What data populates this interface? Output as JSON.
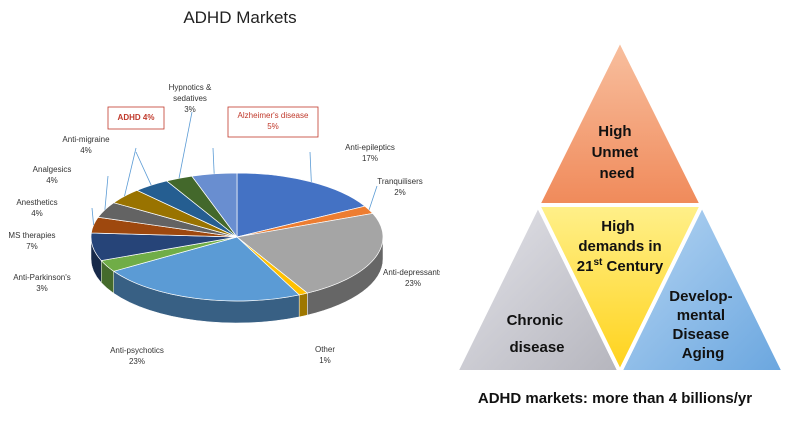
{
  "chart_data": {
    "type": "pie",
    "title": "ADHD Markets",
    "slices": [
      {
        "label": "Anti-epileptics",
        "value": 17,
        "pct": "17%",
        "color": "#4472c4",
        "boxed": false
      },
      {
        "label": "Tranquilisers",
        "value": 2,
        "pct": "2%",
        "color": "#ed7d31",
        "boxed": false
      },
      {
        "label": "Anti-depressants",
        "value": 23,
        "pct": "23%",
        "color": "#a5a5a5",
        "boxed": false
      },
      {
        "label": "Other",
        "value": 1,
        "pct": "1%",
        "color": "#ffc000",
        "boxed": false
      },
      {
        "label": "Anti-psychotics",
        "value": 23,
        "pct": "23%",
        "color": "#5b9bd5",
        "boxed": false
      },
      {
        "label": "Anti-Parkinson's",
        "value": 3,
        "pct": "3%",
        "color": "#70ad47",
        "boxed": false
      },
      {
        "label": "MS therapies",
        "value": 7,
        "pct": "7%",
        "color": "#264478",
        "boxed": false
      },
      {
        "label": "Anesthetics",
        "value": 4,
        "pct": "4%",
        "color": "#9e480e",
        "boxed": false
      },
      {
        "label": "Analgesics",
        "value": 4,
        "pct": "4%",
        "color": "#636363",
        "boxed": false
      },
      {
        "label": "Anti-migraine",
        "value": 4,
        "pct": "4%",
        "color": "#997300",
        "boxed": false
      },
      {
        "label": "ADHD",
        "value": 4,
        "pct": "4%",
        "color": "#255e91",
        "boxed": true
      },
      {
        "label": "Hypnotics & sedatives",
        "value": 3,
        "pct": "3%",
        "color": "#43682b",
        "boxed": false
      },
      {
        "label": "Alzheimer's disease",
        "value": 5,
        "pct": "5%",
        "color": "#698ed0",
        "boxed": true
      }
    ]
  },
  "triangle": {
    "top": [
      "High",
      "Unmet",
      "need"
    ],
    "center": [
      "High",
      "demands in",
      "21",
      "st",
      " Century"
    ],
    "left": [
      "Chronic",
      "disease"
    ],
    "right": [
      "Develop-",
      "mental",
      "Disease",
      "Aging"
    ],
    "colors": {
      "top": "#f4a582",
      "center": "#ffe14d",
      "left": "#c9c9cf",
      "right": "#8fbde8"
    }
  },
  "footer": "ADHD markets: more than 4 billions/yr"
}
